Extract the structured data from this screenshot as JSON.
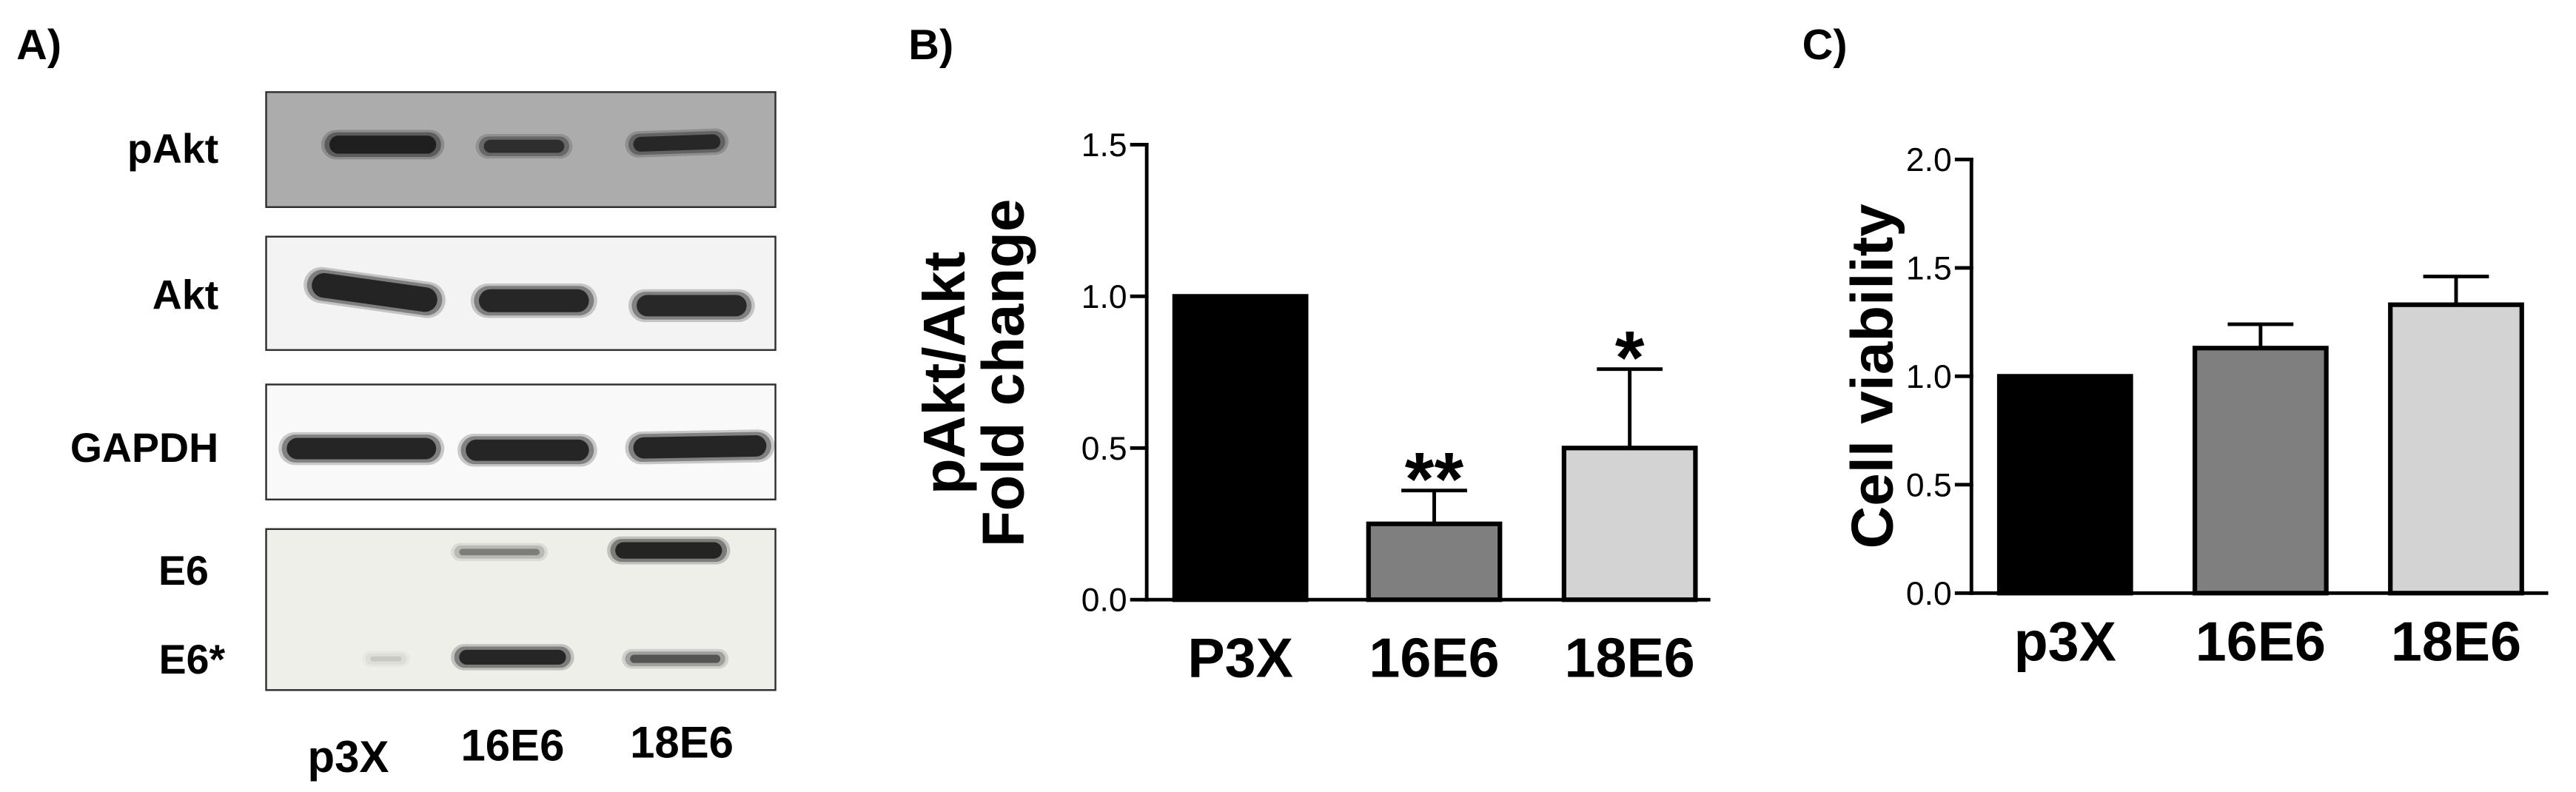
{
  "panel_labels": [
    "A)",
    "B)",
    "C)"
  ],
  "blot": {
    "lanes": [
      "p3X",
      "16E6",
      "18E6"
    ],
    "band_color": "#111111",
    "strips": [
      {
        "background": "#acacac",
        "rows": [
          {
            "label": "pAkt",
            "bands": [
              0.95,
              0.78,
              0.85
            ]
          }
        ]
      },
      {
        "background": "#f3f3f3",
        "rows": [
          {
            "label": "Akt",
            "bands": [
              0.97,
              0.95,
              0.93
            ]
          }
        ]
      },
      {
        "background": "#f9f9f9",
        "rows": [
          {
            "label": "GAPDH",
            "bands": [
              0.97,
              0.97,
              0.97
            ]
          }
        ]
      },
      {
        "background": "#efefea",
        "rows": [
          {
            "label": "E6",
            "bands": [
              0,
              0.42,
              0.97
            ]
          },
          {
            "label": "E6*",
            "bands": [
              0.12,
              0.95,
              0.62
            ]
          }
        ]
      }
    ]
  },
  "chart_data": [
    {
      "type": "bar",
      "categories": [
        "P3X",
        "16E6",
        "18E6"
      ],
      "values": [
        1.0,
        0.25,
        0.5
      ],
      "errors": [
        0,
        0.11,
        0.26
      ],
      "significance": [
        null,
        "**",
        "*"
      ],
      "ylabel": [
        "pAkt/Akt",
        "Fold change"
      ],
      "ylim": [
        0,
        1.5
      ],
      "yticks": [
        "0.0",
        "0.5",
        "1.0",
        "1.5"
      ],
      "colors": [
        "#000000",
        "#7f7f7f",
        "#d3d3d3"
      ],
      "grid": false
    },
    {
      "type": "bar",
      "categories": [
        "p3X",
        "16E6",
        "18E6"
      ],
      "values": [
        1.0,
        1.13,
        1.33
      ],
      "errors": [
        0,
        0.11,
        0.13
      ],
      "ylabel": "Cell viability",
      "ylim": [
        0,
        2.0
      ],
      "yticks": [
        "0.0",
        "0.5",
        "1.0",
        "1.5",
        "2.0"
      ],
      "colors": [
        "#000000",
        "#7f7f7f",
        "#d3d3d3"
      ],
      "grid": false
    }
  ]
}
